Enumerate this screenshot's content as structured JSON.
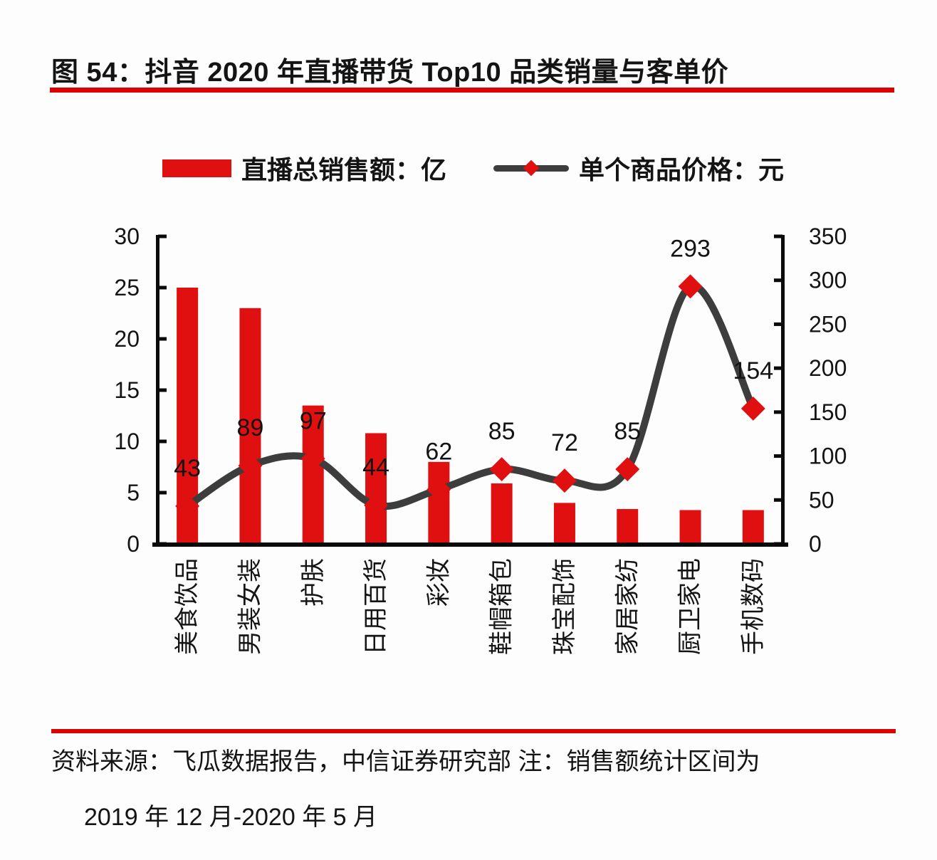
{
  "title": {
    "text": "图 54：抖音 2020 年直播带货 Top10 品类销量与客单价"
  },
  "legend": [
    {
      "label": "直播总销售额：亿",
      "type": "bar",
      "color": "#e01010"
    },
    {
      "label": "单个商品价格：元",
      "type": "line",
      "color": "#3d3d3d",
      "marker": "diamond",
      "marker_color": "#e01010"
    }
  ],
  "chart_data": {
    "type": "bar",
    "subtype": "bar-line-combo",
    "categories": [
      "美食饮品",
      "男装女装",
      "护肤",
      "日用百货",
      "彩妆",
      "鞋帽箱包",
      "珠宝配饰",
      "家居家纺",
      "厨卫家电",
      "手机数码"
    ],
    "series": [
      {
        "name": "直播总销售额：亿",
        "type": "bar",
        "axis": "left",
        "values": [
          25,
          23,
          13.5,
          10.8,
          8,
          5.9,
          4,
          3.4,
          3.3,
          3.3
        ],
        "color": "#e01010",
        "data_labels": false
      },
      {
        "name": "单个商品价格：元",
        "type": "line",
        "axis": "right",
        "values": [
          43,
          89,
          97,
          44,
          62,
          85,
          72,
          85,
          293,
          154
        ],
        "color": "#3d3d3d",
        "marker": "diamond",
        "marker_color": "#e01010",
        "smooth": true,
        "data_labels": true
      }
    ],
    "left_axis": {
      "min": 0,
      "max": 30,
      "step": 5,
      "ticks": [
        0,
        5,
        10,
        15,
        20,
        25,
        30
      ]
    },
    "right_axis": {
      "min": 0,
      "max": 350,
      "step": 50,
      "ticks": [
        0,
        50,
        100,
        150,
        200,
        250,
        300,
        350
      ]
    },
    "grid": false,
    "legend_position": "top"
  },
  "footer": {
    "source_line": "资料来源：飞瓜数据报告，中信证券研究部  注：销售额统计区间为",
    "source_line2": "2019 年 12 月-2020 年 5 月"
  },
  "colors": {
    "bar_red": "#e01010",
    "rule_red": "#dd0202",
    "line_dark": "#3d3d3d",
    "axis_black": "#0a0a0a",
    "text": "#141414",
    "background": "#fdfdfd"
  }
}
